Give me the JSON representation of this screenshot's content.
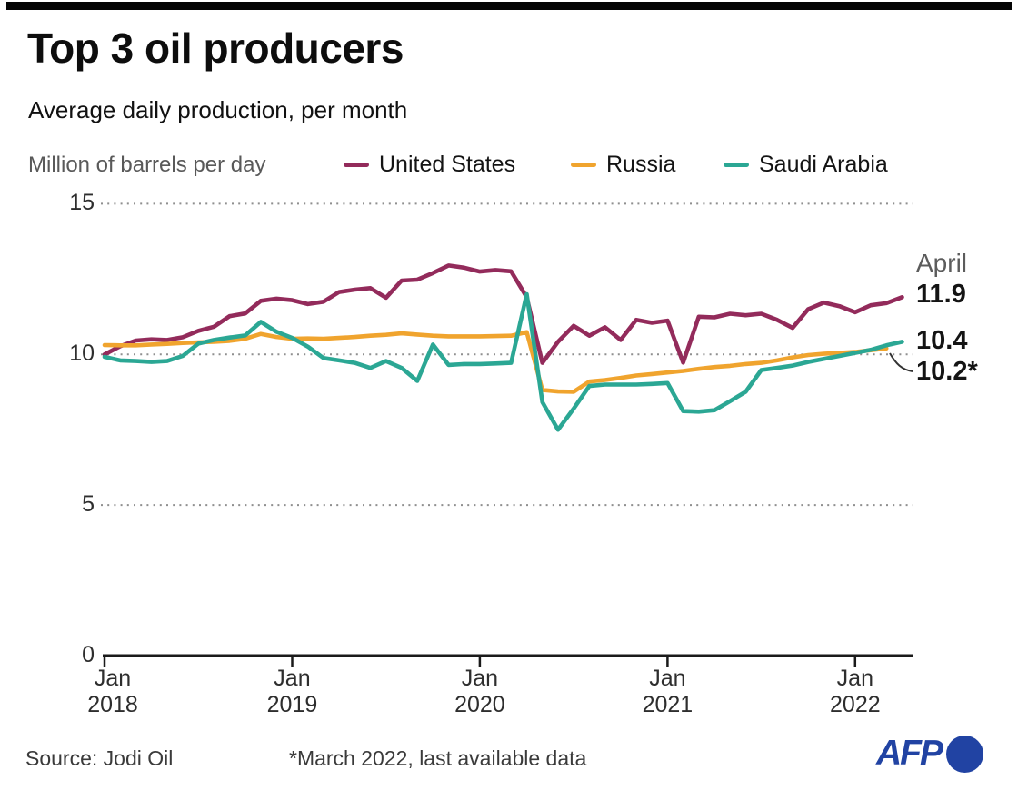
{
  "header": {
    "title": "Top 3 oil producers",
    "subtitle": "Average daily production, per month"
  },
  "chart": {
    "unit_label": "Million of barrels per day",
    "annotations": {
      "month": "April",
      "us": "11.9",
      "saudi": "10.4",
      "russia": "10.2*"
    }
  },
  "chart_data": {
    "type": "line",
    "title": "Top 3 oil producers",
    "ylabel": "Million of barrels per day",
    "x_start": "Jan 2018",
    "x_interval": "month",
    "x_tick_labels": [
      [
        "Jan",
        "2018"
      ],
      [
        "Jan",
        "2019"
      ],
      [
        "Jan",
        "2020"
      ],
      [
        "Jan",
        "2021"
      ],
      [
        "Jan",
        "2022"
      ]
    ],
    "ylim": [
      0,
      15
    ],
    "y_ticks": [
      0,
      5,
      10,
      15
    ],
    "grid": "horizontal-dotted",
    "legend_position": "top",
    "series": [
      {
        "name": "United States",
        "slug": "united-states",
        "color": "#932b5b",
        "last_month": "Apr 2022",
        "end_label": "11.9",
        "values": [
          10.0,
          10.27,
          10.46,
          10.5,
          10.48,
          10.57,
          10.78,
          10.92,
          11.27,
          11.36,
          11.78,
          11.85,
          11.8,
          11.67,
          11.75,
          12.07,
          12.15,
          12.2,
          11.88,
          12.45,
          12.48,
          12.7,
          12.95,
          12.88,
          12.75,
          12.8,
          12.76,
          11.9,
          9.72,
          10.42,
          10.95,
          10.62,
          10.9,
          10.48,
          11.15,
          11.05,
          11.12,
          9.73,
          11.25,
          11.23,
          11.35,
          11.3,
          11.35,
          11.15,
          10.88,
          11.5,
          11.72,
          11.6,
          11.4,
          11.63,
          11.7,
          11.9
        ]
      },
      {
        "name": "Russia",
        "slug": "russia",
        "color": "#f0a42e",
        "last_month": "Mar 2022",
        "end_label": "10.2*",
        "values": [
          10.31,
          10.3,
          10.3,
          10.33,
          10.35,
          10.38,
          10.4,
          10.42,
          10.45,
          10.52,
          10.68,
          10.58,
          10.52,
          10.53,
          10.52,
          10.55,
          10.58,
          10.62,
          10.65,
          10.7,
          10.66,
          10.62,
          10.6,
          10.6,
          10.6,
          10.61,
          10.62,
          10.74,
          8.82,
          8.77,
          8.76,
          9.1,
          9.15,
          9.22,
          9.3,
          9.35,
          9.4,
          9.45,
          9.52,
          9.58,
          9.62,
          9.68,
          9.72,
          9.8,
          9.9,
          9.98,
          10.02,
          10.05,
          10.08,
          10.14,
          10.2
        ]
      },
      {
        "name": "Saudi Arabia",
        "slug": "saudi-arabia",
        "color": "#2ba794",
        "last_month": "Apr 2022",
        "end_label": "10.4",
        "values": [
          9.92,
          9.8,
          9.78,
          9.75,
          9.78,
          9.95,
          10.36,
          10.48,
          10.56,
          10.63,
          11.08,
          10.75,
          10.55,
          10.26,
          9.88,
          9.8,
          9.72,
          9.55,
          9.78,
          9.55,
          9.12,
          10.33,
          9.65,
          9.68,
          9.68,
          9.7,
          9.72,
          12.0,
          8.42,
          7.5,
          8.2,
          8.95,
          9.0,
          9.0,
          9.0,
          9.02,
          9.05,
          8.12,
          8.1,
          8.15,
          8.45,
          8.76,
          9.48,
          9.55,
          9.63,
          9.75,
          9.85,
          9.95,
          10.05,
          10.15,
          10.3,
          10.42
        ]
      }
    ]
  },
  "footer": {
    "source": "Source: Jodi Oil",
    "note": "*March 2022, last available data",
    "brand": "AFP",
    "brand_color": "#2143a3"
  }
}
